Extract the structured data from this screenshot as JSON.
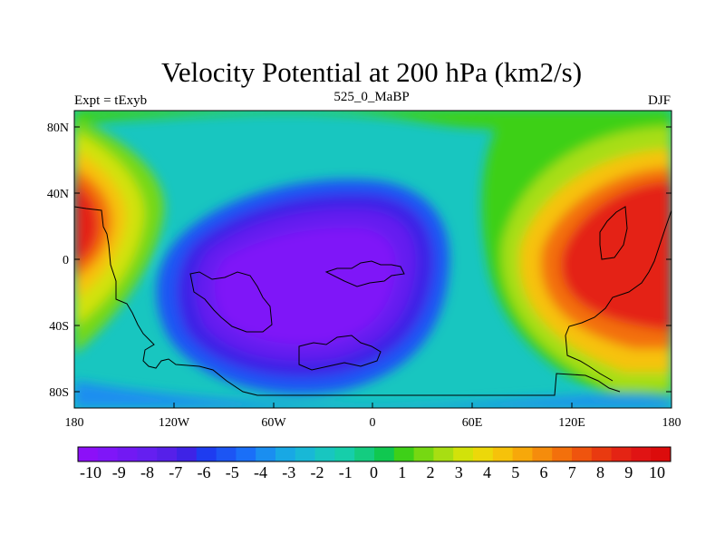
{
  "title": "Velocity Potential at 200 hPa (km2/s)",
  "left_string": "Expt = tExyb",
  "center_string": "525_0_MaBP",
  "right_string": "DJF",
  "chart_data": {
    "type": "heatmap",
    "field": "velocity potential at 200 hPa",
    "units": "km2/s",
    "x_ticks": [
      "180",
      "120W",
      "60W",
      "0",
      "60E",
      "120E",
      "180"
    ],
    "y_ticks": [
      "80N",
      "40N",
      "0",
      "40S",
      "80S"
    ],
    "xlim": [
      -180,
      180
    ],
    "ylim": [
      -90,
      90
    ],
    "colorbar_labels": [
      "-10",
      "-9",
      "-8",
      "-7",
      "-6",
      "-5",
      "-4",
      "-3",
      "-2",
      "-1",
      "0",
      "1",
      "2",
      "3",
      "4",
      "5",
      "6",
      "7",
      "8",
      "9",
      "10"
    ],
    "colorbar_colors": [
      "#8c10f8",
      "#7f16f8",
      "#7219f3",
      "#651ff0",
      "#5620e9",
      "#3e23e6",
      "#1e3cf0",
      "#1c55f4",
      "#1a6ff8",
      "#1a8ef0",
      "#18a8e4",
      "#18b8d6",
      "#18c6c0",
      "#16ceaa",
      "#14cc80",
      "#10c850",
      "#3ed018",
      "#76d812",
      "#a8de12",
      "#d2e20a",
      "#ecd80a",
      "#f6c20a",
      "#f7a80a",
      "#f58c0c",
      "#f3700c",
      "#ef540e",
      "#e93a10",
      "#e42414",
      "#e01414",
      "#dc0c0c"
    ],
    "features": [
      {
        "name": "negative center",
        "lon": -40,
        "lat": -8,
        "value": -10
      },
      {
        "name": "positive center",
        "lon": 145,
        "lat": 0,
        "value": 10
      },
      {
        "name": "positive center",
        "lon": -175,
        "lat": 25,
        "value": 9
      }
    ]
  }
}
